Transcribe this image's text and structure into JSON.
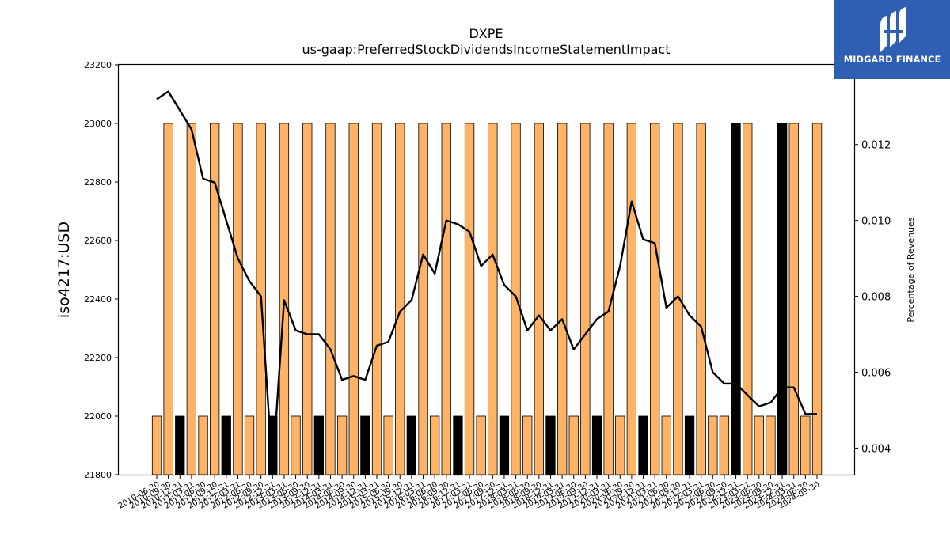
{
  "logo": {
    "text": "MIDGARD FINANCE",
    "icon": "midgard-logo-icon",
    "bg_color": "#2f5fb3"
  },
  "chart_data": {
    "type": "bar",
    "title": "DXPE",
    "subtitle": "us-gaap:PreferredStockDividendsIncomeStatementImpact",
    "ylabel": "iso4217:USD",
    "ylabel_right": "Percentage of Revenues",
    "ylim": [
      21800,
      23200
    ],
    "ylim_right": [
      0.0033,
      0.0141
    ],
    "yticks": [
      21800,
      22000,
      22200,
      22400,
      22600,
      22800,
      23000,
      23200
    ],
    "yticks_right": [
      "0.004",
      "0.006",
      "0.008",
      "0.010",
      "0.012"
    ],
    "grid": false,
    "colors": {
      "quarterly": "#ffb366",
      "annual": "#000000",
      "line": "#000000"
    },
    "categories": [
      "2010-06-30",
      "2010-09-30",
      "2010-12-31",
      "2011-03-31",
      "2011-06-30",
      "2011-09-30",
      "2011-12-31",
      "2012-03-31",
      "2012-06-30",
      "2012-09-30",
      "2012-12-31",
      "2013-03-31",
      "2013-06-30",
      "2013-09-30",
      "2013-12-31",
      "2014-03-31",
      "2014-06-30",
      "2014-09-30",
      "2014-12-31",
      "2015-03-31",
      "2015-06-30",
      "2015-09-30",
      "2015-12-31",
      "2016-03-31",
      "2016-06-30",
      "2016-09-30",
      "2016-12-31",
      "2017-03-31",
      "2017-06-30",
      "2017-09-30",
      "2017-12-31",
      "2018-03-31",
      "2018-06-30",
      "2018-09-30",
      "2018-12-31",
      "2019-03-31",
      "2019-06-30",
      "2019-09-30",
      "2019-12-31",
      "2020-03-31",
      "2020-06-30",
      "2020-09-30",
      "2020-12-31",
      "2021-03-31",
      "2021-06-30",
      "2021-09-30",
      "2021-12-31",
      "2022-03-31",
      "2022-06-30",
      "2022-09-30",
      "2022-12-31",
      "2023-03-31",
      "2023-06-30",
      "2023-09-30",
      "2023-12-31",
      "2024-03-31",
      "2024-06-30",
      "2024-09-30"
    ],
    "visible_xtick_labels": [
      "2010-06-30",
      "2010-09-30",
      "2010-12-31",
      "2011-03-31",
      "2011-06-30",
      "2011-09-30",
      "2011-12-31",
      "2012-03-31",
      "2012-06-30",
      "2012-09-30",
      "2012-12-31",
      "2013-03-31",
      "2013-06-30",
      "2013-09-30",
      "2013-12-31",
      "2014-03-31",
      "2014-06-30",
      "2014-09-30",
      "2014-12-31",
      "2015-03-31",
      "2015-06-30",
      "2015-09-30",
      "2015-12-31",
      "2016-03-31",
      "2016-06-30",
      "2016-09-30",
      "2016-12-31",
      "2017-03-31",
      "2017-06-30",
      "2017-09-30",
      "2017-12-31",
      "2018-03-31",
      "2018-06-30",
      "2018-09-30",
      "2018-12-31",
      "2019-03-31",
      "2019-06-30",
      "2019-09-30",
      "2019-12-31",
      "2020-03-31",
      "2020-06-30",
      "2020-09-30",
      "2020-12-31",
      "2021-03-31",
      "2021-06-30",
      "2021-09-30",
      "2021-12-31",
      "2022-03-31",
      "2022-06-30",
      "2022-09-30",
      "2022-12-31",
      "2023-03-31",
      "2023-06-30",
      "2023-09-30",
      "2023-12-31",
      "2024-03-31",
      "2024-06-30",
      "2024-09-30"
    ],
    "bar_values": [
      22000,
      23000,
      22000,
      23000,
      22000,
      23000,
      22000,
      23000,
      22000,
      23000,
      22000,
      23000,
      22000,
      23000,
      22000,
      23000,
      22000,
      23000,
      22000,
      23000,
      22000,
      23000,
      22000,
      23000,
      22000,
      23000,
      22000,
      23000,
      22000,
      23000,
      22000,
      23000,
      22000,
      23000,
      22000,
      23000,
      22000,
      23000,
      22000,
      23000,
      22000,
      23000,
      22000,
      23000,
      22000,
      23000,
      22000,
      23000,
      22000,
      22000,
      23000,
      23000,
      22000,
      22000,
      23000,
      23000,
      22000,
      23000
    ],
    "bar_kind": [
      "q",
      "q",
      "a",
      "q",
      "q",
      "q",
      "a",
      "q",
      "q",
      "q",
      "a",
      "q",
      "q",
      "q",
      "a",
      "q",
      "q",
      "q",
      "a",
      "q",
      "q",
      "q",
      "a",
      "q",
      "q",
      "q",
      "a",
      "q",
      "q",
      "q",
      "a",
      "q",
      "q",
      "q",
      "a",
      "q",
      "q",
      "q",
      "a",
      "q",
      "q",
      "q",
      "a",
      "q",
      "q",
      "q",
      "a",
      "q",
      "q",
      "q",
      "a",
      "q",
      "q",
      "q",
      "a",
      "q",
      "q",
      "q"
    ],
    "line_values": [
      0.0132,
      0.0134,
      0.0129,
      0.0124,
      0.0111,
      0.011,
      0.01,
      0.009,
      0.0084,
      0.008,
      0.0034,
      0.0079,
      0.0071,
      0.007,
      0.007,
      0.0066,
      0.0058,
      0.0059,
      0.0058,
      0.0067,
      0.0068,
      0.0076,
      0.0079,
      0.0091,
      0.0086,
      0.01,
      0.0099,
      0.0097,
      0.0088,
      0.0091,
      0.0083,
      0.008,
      0.0071,
      0.0075,
      0.0071,
      0.0074,
      0.0066,
      0.007,
      0.0074,
      0.0076,
      0.0088,
      0.0105,
      0.0095,
      0.0094,
      0.0077,
      0.008,
      0.0075,
      0.0072,
      0.006,
      0.0057,
      0.0057,
      0.0054,
      0.0051,
      0.0052,
      0.0056,
      0.0056,
      0.0049,
      0.0049
    ]
  }
}
